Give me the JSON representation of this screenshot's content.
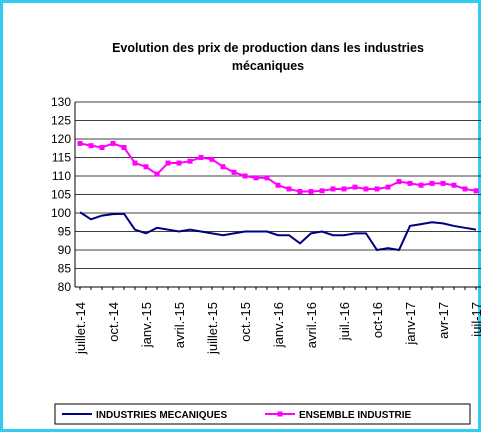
{
  "chart_data": {
    "type": "line",
    "title": "Evolution des prix de production dans les industries mécaniques",
    "categories": [
      "juillet.-14",
      null,
      null,
      "oct.-14",
      null,
      null,
      "janv.-15",
      null,
      null,
      "avril.-15",
      null,
      null,
      "juillet.-15",
      null,
      null,
      "oct.-15",
      null,
      null,
      "janv.-16",
      null,
      null,
      "avril.-16",
      null,
      null,
      "juil.-16",
      null,
      null,
      "oct-16",
      null,
      null,
      "janv-17",
      null,
      null,
      "avr-17",
      null,
      null,
      "juil-17"
    ],
    "series": [
      {
        "name": "INDUSTRIES MECANIQUES",
        "color": "#000080",
        "values": [
          100.2,
          98.3,
          99.3,
          99.7,
          99.8,
          95.5,
          94.5,
          96,
          95.5,
          95,
          95.5,
          95,
          94.5,
          94,
          94.5,
          95,
          95,
          95,
          94,
          94,
          91.8,
          94.5,
          95,
          94,
          94,
          94.5,
          94.5,
          90,
          90.5,
          90,
          96.5,
          97,
          97.5,
          97.2,
          96.5,
          96,
          95.5
        ]
      },
      {
        "name": "ENSEMBLE INDUSTRIE",
        "color": "#ff00ff",
        "values": [
          118.8,
          118.2,
          117.7,
          118.8,
          117.7,
          113.5,
          112.5,
          110.5,
          113.5,
          113.5,
          114,
          115,
          114.5,
          112.5,
          111,
          110,
          109.5,
          109.5,
          107.5,
          106.5,
          105.8,
          105.8,
          106,
          106.5,
          106.5,
          107,
          106.5,
          106.5,
          107,
          108.5,
          108,
          107.5,
          108,
          108,
          107.5,
          106.5,
          106
        ]
      }
    ],
    "ylim": [
      80,
      130
    ],
    "yticks": [
      80,
      85,
      90,
      95,
      100,
      105,
      110,
      115,
      120,
      125,
      130
    ],
    "grid": true
  }
}
